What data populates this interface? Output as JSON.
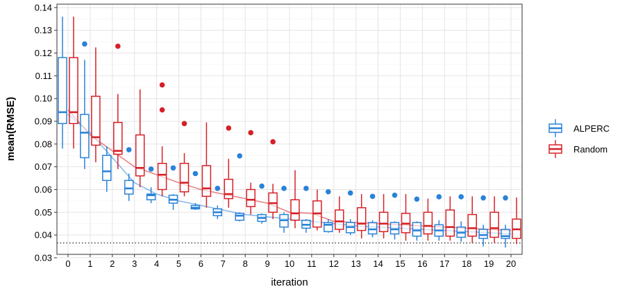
{
  "chart_data": {
    "type": "box",
    "xlabel": "iteration",
    "ylabel": "mean(RMSE)",
    "x_categories": [
      "0",
      "1",
      "2",
      "3",
      "4",
      "5",
      "6",
      "7",
      "8",
      "9",
      "10",
      "11",
      "12",
      "13",
      "14",
      "15",
      "16",
      "17",
      "18",
      "19",
      "20"
    ],
    "ylim": [
      0.0315,
      0.1415
    ],
    "y_ticks": [
      0.03,
      0.04,
      0.05,
      0.06,
      0.07,
      0.08,
      0.09,
      0.1,
      0.11,
      0.12,
      0.13,
      0.14
    ],
    "y_tick_labels": [
      "0.03",
      "0.04",
      "0.05",
      "0.06",
      "0.07",
      "0.08",
      "0.09",
      "0.10",
      "0.11",
      "0.12",
      "0.13",
      "0.14"
    ],
    "grid": true,
    "legend_position": "right",
    "reference_line": {
      "y": 0.0365,
      "style": "dotted"
    },
    "series": [
      {
        "name": "ALPERC",
        "color": "#2a82d8",
        "mean_line": [
          0.093,
          0.085,
          0.074,
          0.063,
          0.058,
          0.055,
          0.053,
          0.051,
          0.049,
          0.048,
          0.047,
          0.046,
          0.045,
          0.044,
          0.0435,
          0.043,
          0.0425,
          0.042,
          0.0415,
          0.041,
          0.0405
        ],
        "boxes": [
          {
            "x": 0,
            "whislo": 0.078,
            "q1": 0.089,
            "med": 0.094,
            "q3": 0.118,
            "whishi": 0.136,
            "outliers": []
          },
          {
            "x": 1,
            "whislo": 0.069,
            "q1": 0.074,
            "med": 0.085,
            "q3": 0.093,
            "whishi": 0.117,
            "outliers": [
              0.124
            ]
          },
          {
            "x": 2,
            "whislo": 0.059,
            "q1": 0.064,
            "med": 0.068,
            "q3": 0.075,
            "whishi": 0.079,
            "outliers": []
          },
          {
            "x": 3,
            "whislo": 0.055,
            "q1": 0.058,
            "med": 0.0605,
            "q3": 0.064,
            "whishi": 0.067,
            "outliers": [
              0.0775
            ]
          },
          {
            "x": 4,
            "whislo": 0.054,
            "q1": 0.0555,
            "med": 0.0575,
            "q3": 0.058,
            "whishi": 0.061,
            "outliers": [
              0.069
            ]
          },
          {
            "x": 5,
            "whislo": 0.051,
            "q1": 0.054,
            "med": 0.0555,
            "q3": 0.0575,
            "whishi": 0.058,
            "outliers": [
              0.0695
            ]
          },
          {
            "x": 6,
            "whislo": 0.051,
            "q1": 0.0515,
            "med": 0.052,
            "q3": 0.053,
            "whishi": 0.054,
            "outliers": [
              0.067
            ]
          },
          {
            "x": 7,
            "whislo": 0.047,
            "q1": 0.0485,
            "med": 0.05,
            "q3": 0.0515,
            "whishi": 0.053,
            "outliers": [
              0.0605
            ]
          },
          {
            "x": 8,
            "whislo": 0.046,
            "q1": 0.0465,
            "med": 0.0485,
            "q3": 0.0495,
            "whishi": 0.05,
            "outliers": [
              0.0748
            ]
          },
          {
            "x": 9,
            "whislo": 0.045,
            "q1": 0.046,
            "med": 0.0475,
            "q3": 0.049,
            "whishi": 0.0495,
            "outliers": [
              0.0615
            ]
          },
          {
            "x": 10,
            "whislo": 0.041,
            "q1": 0.0435,
            "med": 0.0465,
            "q3": 0.049,
            "whishi": 0.05,
            "outliers": [
              0.0605
            ]
          },
          {
            "x": 11,
            "whislo": 0.041,
            "q1": 0.043,
            "med": 0.0445,
            "q3": 0.0465,
            "whishi": 0.047,
            "outliers": [
              0.0605
            ]
          },
          {
            "x": 12,
            "whislo": 0.041,
            "q1": 0.0415,
            "med": 0.0445,
            "q3": 0.0455,
            "whishi": 0.047,
            "outliers": [
              0.059
            ]
          },
          {
            "x": 13,
            "whislo": 0.04,
            "q1": 0.041,
            "med": 0.0435,
            "q3": 0.0455,
            "whishi": 0.047,
            "outliers": [
              0.0585
            ]
          },
          {
            "x": 14,
            "whislo": 0.039,
            "q1": 0.0405,
            "med": 0.0425,
            "q3": 0.0455,
            "whishi": 0.0465,
            "outliers": [
              0.057
            ]
          },
          {
            "x": 15,
            "whislo": 0.038,
            "q1": 0.0405,
            "med": 0.0425,
            "q3": 0.0455,
            "whishi": 0.046,
            "outliers": [
              0.0575
            ]
          },
          {
            "x": 16,
            "whislo": 0.0375,
            "q1": 0.0395,
            "med": 0.042,
            "q3": 0.0455,
            "whishi": 0.046,
            "outliers": [
              0.0558
            ]
          },
          {
            "x": 17,
            "whislo": 0.0375,
            "q1": 0.0395,
            "med": 0.042,
            "q3": 0.0445,
            "whishi": 0.0465,
            "outliers": [
              0.0568
            ]
          },
          {
            "x": 18,
            "whislo": 0.037,
            "q1": 0.039,
            "med": 0.041,
            "q3": 0.0435,
            "whishi": 0.046,
            "outliers": [
              0.0568
            ]
          },
          {
            "x": 19,
            "whislo": 0.035,
            "q1": 0.0385,
            "med": 0.04,
            "q3": 0.0425,
            "whishi": 0.0445,
            "outliers": [
              0.0563
            ]
          },
          {
            "x": 20,
            "whislo": 0.0345,
            "q1": 0.0385,
            "med": 0.0395,
            "q3": 0.0425,
            "whishi": 0.0445,
            "outliers": [
              0.0563
            ]
          }
        ]
      },
      {
        "name": "Random",
        "color": "#d62027",
        "mean_line": [
          0.095,
          0.084,
          0.077,
          0.07,
          0.0665,
          0.063,
          0.06,
          0.058,
          0.056,
          0.054,
          0.05,
          0.0495,
          0.046,
          0.0455,
          0.045,
          0.0445,
          0.044,
          0.0435,
          0.043,
          0.0425,
          0.042
        ],
        "boxes": [
          {
            "x": 0,
            "whislo": 0.078,
            "q1": 0.089,
            "med": 0.094,
            "q3": 0.118,
            "whishi": 0.136,
            "outliers": []
          },
          {
            "x": 1,
            "whislo": 0.072,
            "q1": 0.0795,
            "med": 0.083,
            "q3": 0.101,
            "whishi": 0.1225,
            "outliers": []
          },
          {
            "x": 2,
            "whislo": 0.069,
            "q1": 0.0755,
            "med": 0.077,
            "q3": 0.0895,
            "whishi": 0.102,
            "outliers": [
              0.123
            ]
          },
          {
            "x": 3,
            "whislo": 0.061,
            "q1": 0.066,
            "med": 0.0695,
            "q3": 0.084,
            "whishi": 0.104,
            "outliers": []
          },
          {
            "x": 4,
            "whislo": 0.057,
            "q1": 0.06,
            "med": 0.0665,
            "q3": 0.0715,
            "whishi": 0.079,
            "outliers": [
              0.095,
              0.106
            ]
          },
          {
            "x": 5,
            "whislo": 0.057,
            "q1": 0.059,
            "med": 0.063,
            "q3": 0.0715,
            "whishi": 0.076,
            "outliers": [
              0.089
            ]
          },
          {
            "x": 6,
            "whislo": 0.052,
            "q1": 0.057,
            "med": 0.0605,
            "q3": 0.0705,
            "whishi": 0.0895,
            "outliers": []
          },
          {
            "x": 7,
            "whislo": 0.052,
            "q1": 0.056,
            "med": 0.058,
            "q3": 0.0645,
            "whishi": 0.0735,
            "outliers": [
              0.087
            ]
          },
          {
            "x": 8,
            "whislo": 0.049,
            "q1": 0.0525,
            "med": 0.0555,
            "q3": 0.06,
            "whishi": 0.063,
            "outliers": [
              0.085
            ]
          },
          {
            "x": 9,
            "whislo": 0.047,
            "q1": 0.05,
            "med": 0.054,
            "q3": 0.0585,
            "whishi": 0.0625,
            "outliers": [
              0.081
            ]
          },
          {
            "x": 10,
            "whislo": 0.043,
            "q1": 0.0465,
            "med": 0.0495,
            "q3": 0.0555,
            "whishi": 0.0685,
            "outliers": []
          },
          {
            "x": 11,
            "whislo": 0.042,
            "q1": 0.0435,
            "med": 0.0495,
            "q3": 0.055,
            "whishi": 0.06,
            "outliers": []
          },
          {
            "x": 12,
            "whislo": 0.041,
            "q1": 0.0425,
            "med": 0.046,
            "q3": 0.051,
            "whishi": 0.057,
            "outliers": []
          },
          {
            "x": 13,
            "whislo": 0.0385,
            "q1": 0.042,
            "med": 0.045,
            "q3": 0.052,
            "whishi": 0.058,
            "outliers": []
          },
          {
            "x": 14,
            "whislo": 0.0385,
            "q1": 0.0415,
            "med": 0.045,
            "q3": 0.05,
            "whishi": 0.058,
            "outliers": []
          },
          {
            "x": 15,
            "whislo": 0.0375,
            "q1": 0.041,
            "med": 0.045,
            "q3": 0.0495,
            "whishi": 0.058,
            "outliers": []
          },
          {
            "x": 16,
            "whislo": 0.0375,
            "q1": 0.0405,
            "med": 0.044,
            "q3": 0.05,
            "whishi": 0.056,
            "outliers": []
          },
          {
            "x": 17,
            "whislo": 0.0375,
            "q1": 0.0395,
            "med": 0.0435,
            "q3": 0.051,
            "whishi": 0.057,
            "outliers": []
          },
          {
            "x": 18,
            "whislo": 0.0365,
            "q1": 0.0395,
            "med": 0.043,
            "q3": 0.049,
            "whishi": 0.057,
            "outliers": []
          },
          {
            "x": 19,
            "whislo": 0.0365,
            "q1": 0.039,
            "med": 0.043,
            "q3": 0.05,
            "whishi": 0.057,
            "outliers": []
          },
          {
            "x": 20,
            "whislo": 0.036,
            "q1": 0.0385,
            "med": 0.0425,
            "q3": 0.047,
            "whishi": 0.0565,
            "outliers": []
          }
        ]
      }
    ]
  }
}
